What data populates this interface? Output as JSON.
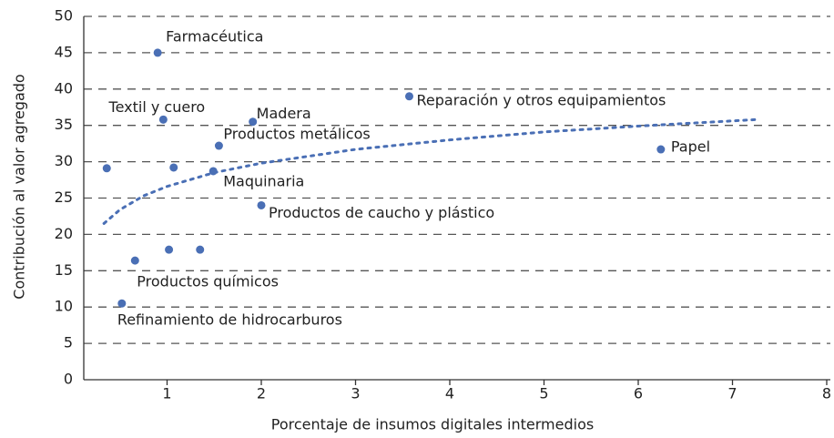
{
  "chart_data": {
    "type": "scatter",
    "xlabel": "Porcentaje de insumos digitales intermedios",
    "ylabel": "Contribución al valor agregado",
    "xlim": [
      0,
      8
    ],
    "ylim": [
      0,
      50
    ],
    "xticks": [
      1,
      2,
      3,
      4,
      5,
      6,
      7,
      8
    ],
    "yticks": [
      0,
      5,
      10,
      15,
      20,
      25,
      30,
      35,
      40,
      45,
      50
    ],
    "grid": true,
    "color": "#4a6fb5",
    "labels": [
      "Farmacéutica",
      "Textil y cuero",
      "Madera",
      "Productos metálicos",
      null,
      "Maquinaria",
      null,
      "Productos de caucho y plástico",
      "Reparación y otros equipamientos",
      "Papel",
      "Productos químicos",
      null,
      null,
      "Refinamiento de hidrocarburos"
    ],
    "x": [
      0.9,
      0.96,
      1.91,
      1.55,
      1.07,
      1.49,
      0.36,
      2.0,
      3.57,
      6.24,
      0.66,
      1.02,
      1.35,
      0.52
    ],
    "values": [
      45,
      35.8,
      35.5,
      32.2,
      29.2,
      28.7,
      29.1,
      24,
      39,
      31.7,
      16.4,
      17.9,
      17.9,
      10.5
    ],
    "trend": {
      "x": [
        0.33,
        0.5,
        0.75,
        1,
        1.5,
        2,
        3,
        4,
        5,
        6,
        7.25
      ],
      "values": [
        21.5,
        23.4,
        25.3,
        26.6,
        28.5,
        29.8,
        31.7,
        33.0,
        34.1,
        34.9,
        35.8
      ]
    }
  }
}
